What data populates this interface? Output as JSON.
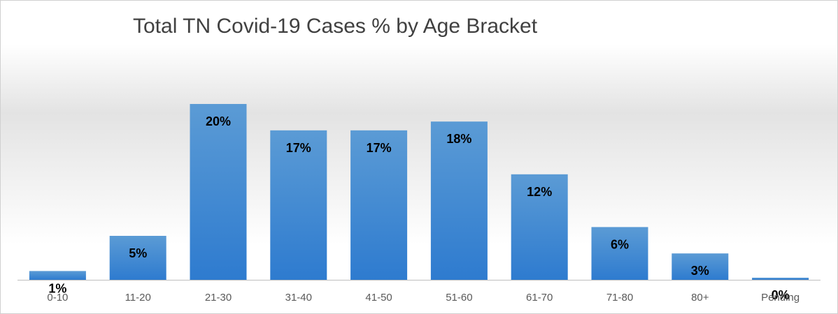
{
  "chart_data": {
    "type": "bar",
    "title": "Total TN Covid-19 Cases % by Age Bracket",
    "xlabel": "",
    "ylabel": "",
    "categories": [
      "0-10",
      "11-20",
      "21-30",
      "31-40",
      "41-50",
      "51-60",
      "61-70",
      "71-80",
      "80+",
      "Pending"
    ],
    "values": [
      1,
      5,
      20,
      17,
      17,
      18,
      12,
      6,
      3,
      0
    ],
    "value_labels": [
      "1%",
      "5%",
      "20%",
      "17%",
      "17%",
      "18%",
      "12%",
      "6%",
      "3%",
      "0%"
    ],
    "ylim": [
      0,
      25
    ],
    "unit": "%",
    "grid": false,
    "legend": "none",
    "colors": {
      "bar_top": "#5B9BD5",
      "bar_bottom": "#2E7BCF",
      "axis": "#BFBFBF",
      "tick_label": "#595959",
      "data_label": "#000000",
      "title": "#404040"
    }
  }
}
